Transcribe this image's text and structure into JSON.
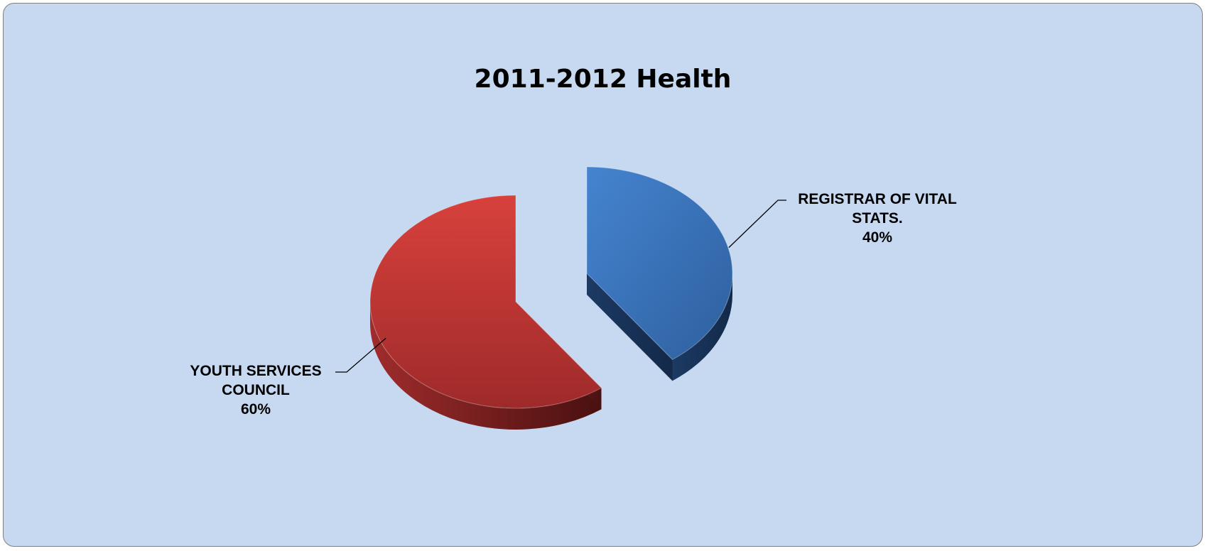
{
  "chart_data": {
    "type": "pie",
    "title": "2011-2012 Health",
    "slices": [
      {
        "name_lines": [
          "REGISTRAR OF VITAL",
          "STATS."
        ],
        "value": 40,
        "percent_label": "40%",
        "color": "#3a72b8",
        "side_color": "#1d3a63"
      },
      {
        "name_lines": [
          "YOUTH SERVICES",
          "COUNCIL"
        ],
        "value": 60,
        "percent_label": "60%",
        "color": "#c0393b",
        "side_color": "#6b1a1b"
      }
    ],
    "style": "3d-exploded",
    "legend": "none"
  },
  "frame": {
    "background": "#c6d9f1",
    "border": "#7f7f7f"
  }
}
